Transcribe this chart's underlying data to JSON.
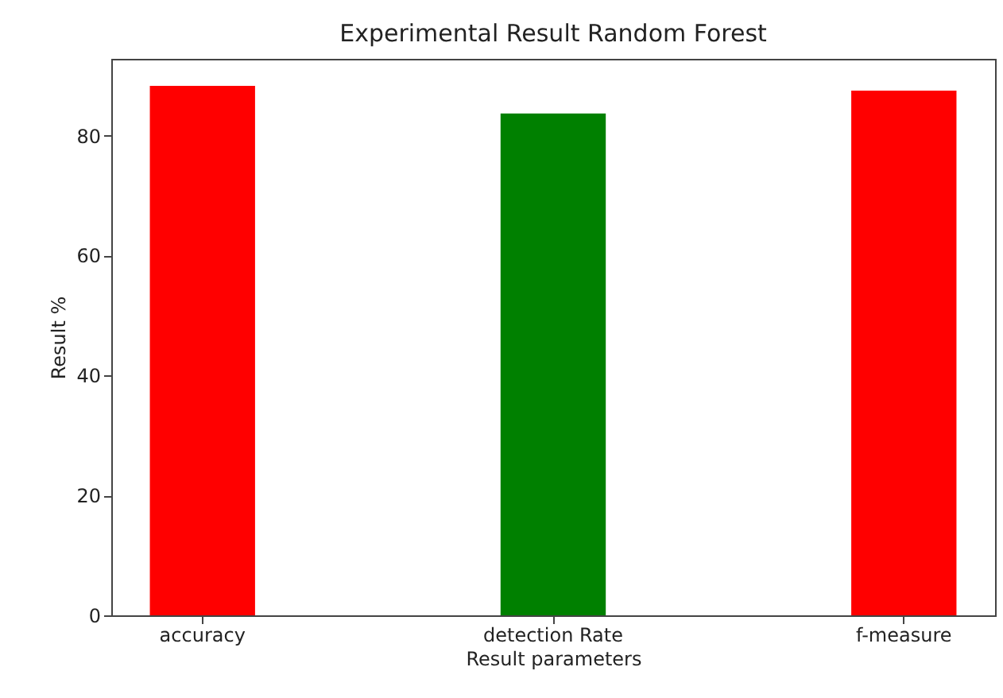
{
  "chart_data": {
    "type": "bar",
    "title": "Experimental Result Random Forest",
    "xlabel": "Result parameters",
    "ylabel": "Result %",
    "categories": [
      "accuracy",
      "detection Rate",
      "f-measure"
    ],
    "values": [
      88.3,
      83.7,
      87.5
    ],
    "colors": [
      "#ff0000",
      "#008000",
      "#ff0000"
    ],
    "ylim": [
      0,
      92.8
    ],
    "yticks": [
      0,
      20,
      40,
      60,
      80
    ],
    "grid": false
  }
}
